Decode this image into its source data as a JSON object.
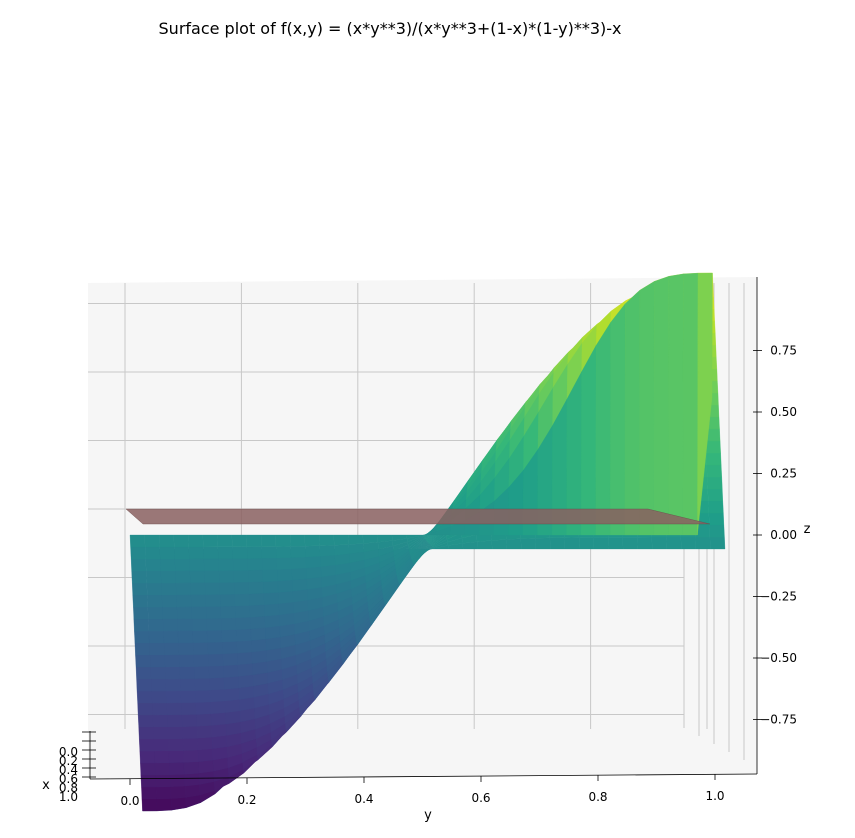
{
  "chart_data": {
    "type": "surface",
    "title": "Surface plot of f(x,y) = (x*y**3)/(x*y**3+(1-x)*(1-y)**3)-x",
    "xlabel": "x",
    "ylabel": "y",
    "zlabel": "z",
    "x_ticks": [
      "0.0",
      "0.2",
      "0.4",
      "0.6",
      "0.8",
      "1.0"
    ],
    "y_ticks": [
      "0.0",
      "0.2",
      "0.4",
      "0.6",
      "0.8",
      "1.0"
    ],
    "z_ticks": [
      "−0.75",
      "−0.50",
      "−0.25",
      "0.00",
      "0.25",
      "0.50",
      "0.75"
    ],
    "x_range": [
      0,
      1
    ],
    "y_range": [
      0,
      1
    ],
    "z_range": [
      -1,
      1
    ],
    "colormap": "viridis",
    "plane_z": 0,
    "plane_color": "#8a6060",
    "grid": true,
    "pane_color": "#f2f2f2"
  }
}
